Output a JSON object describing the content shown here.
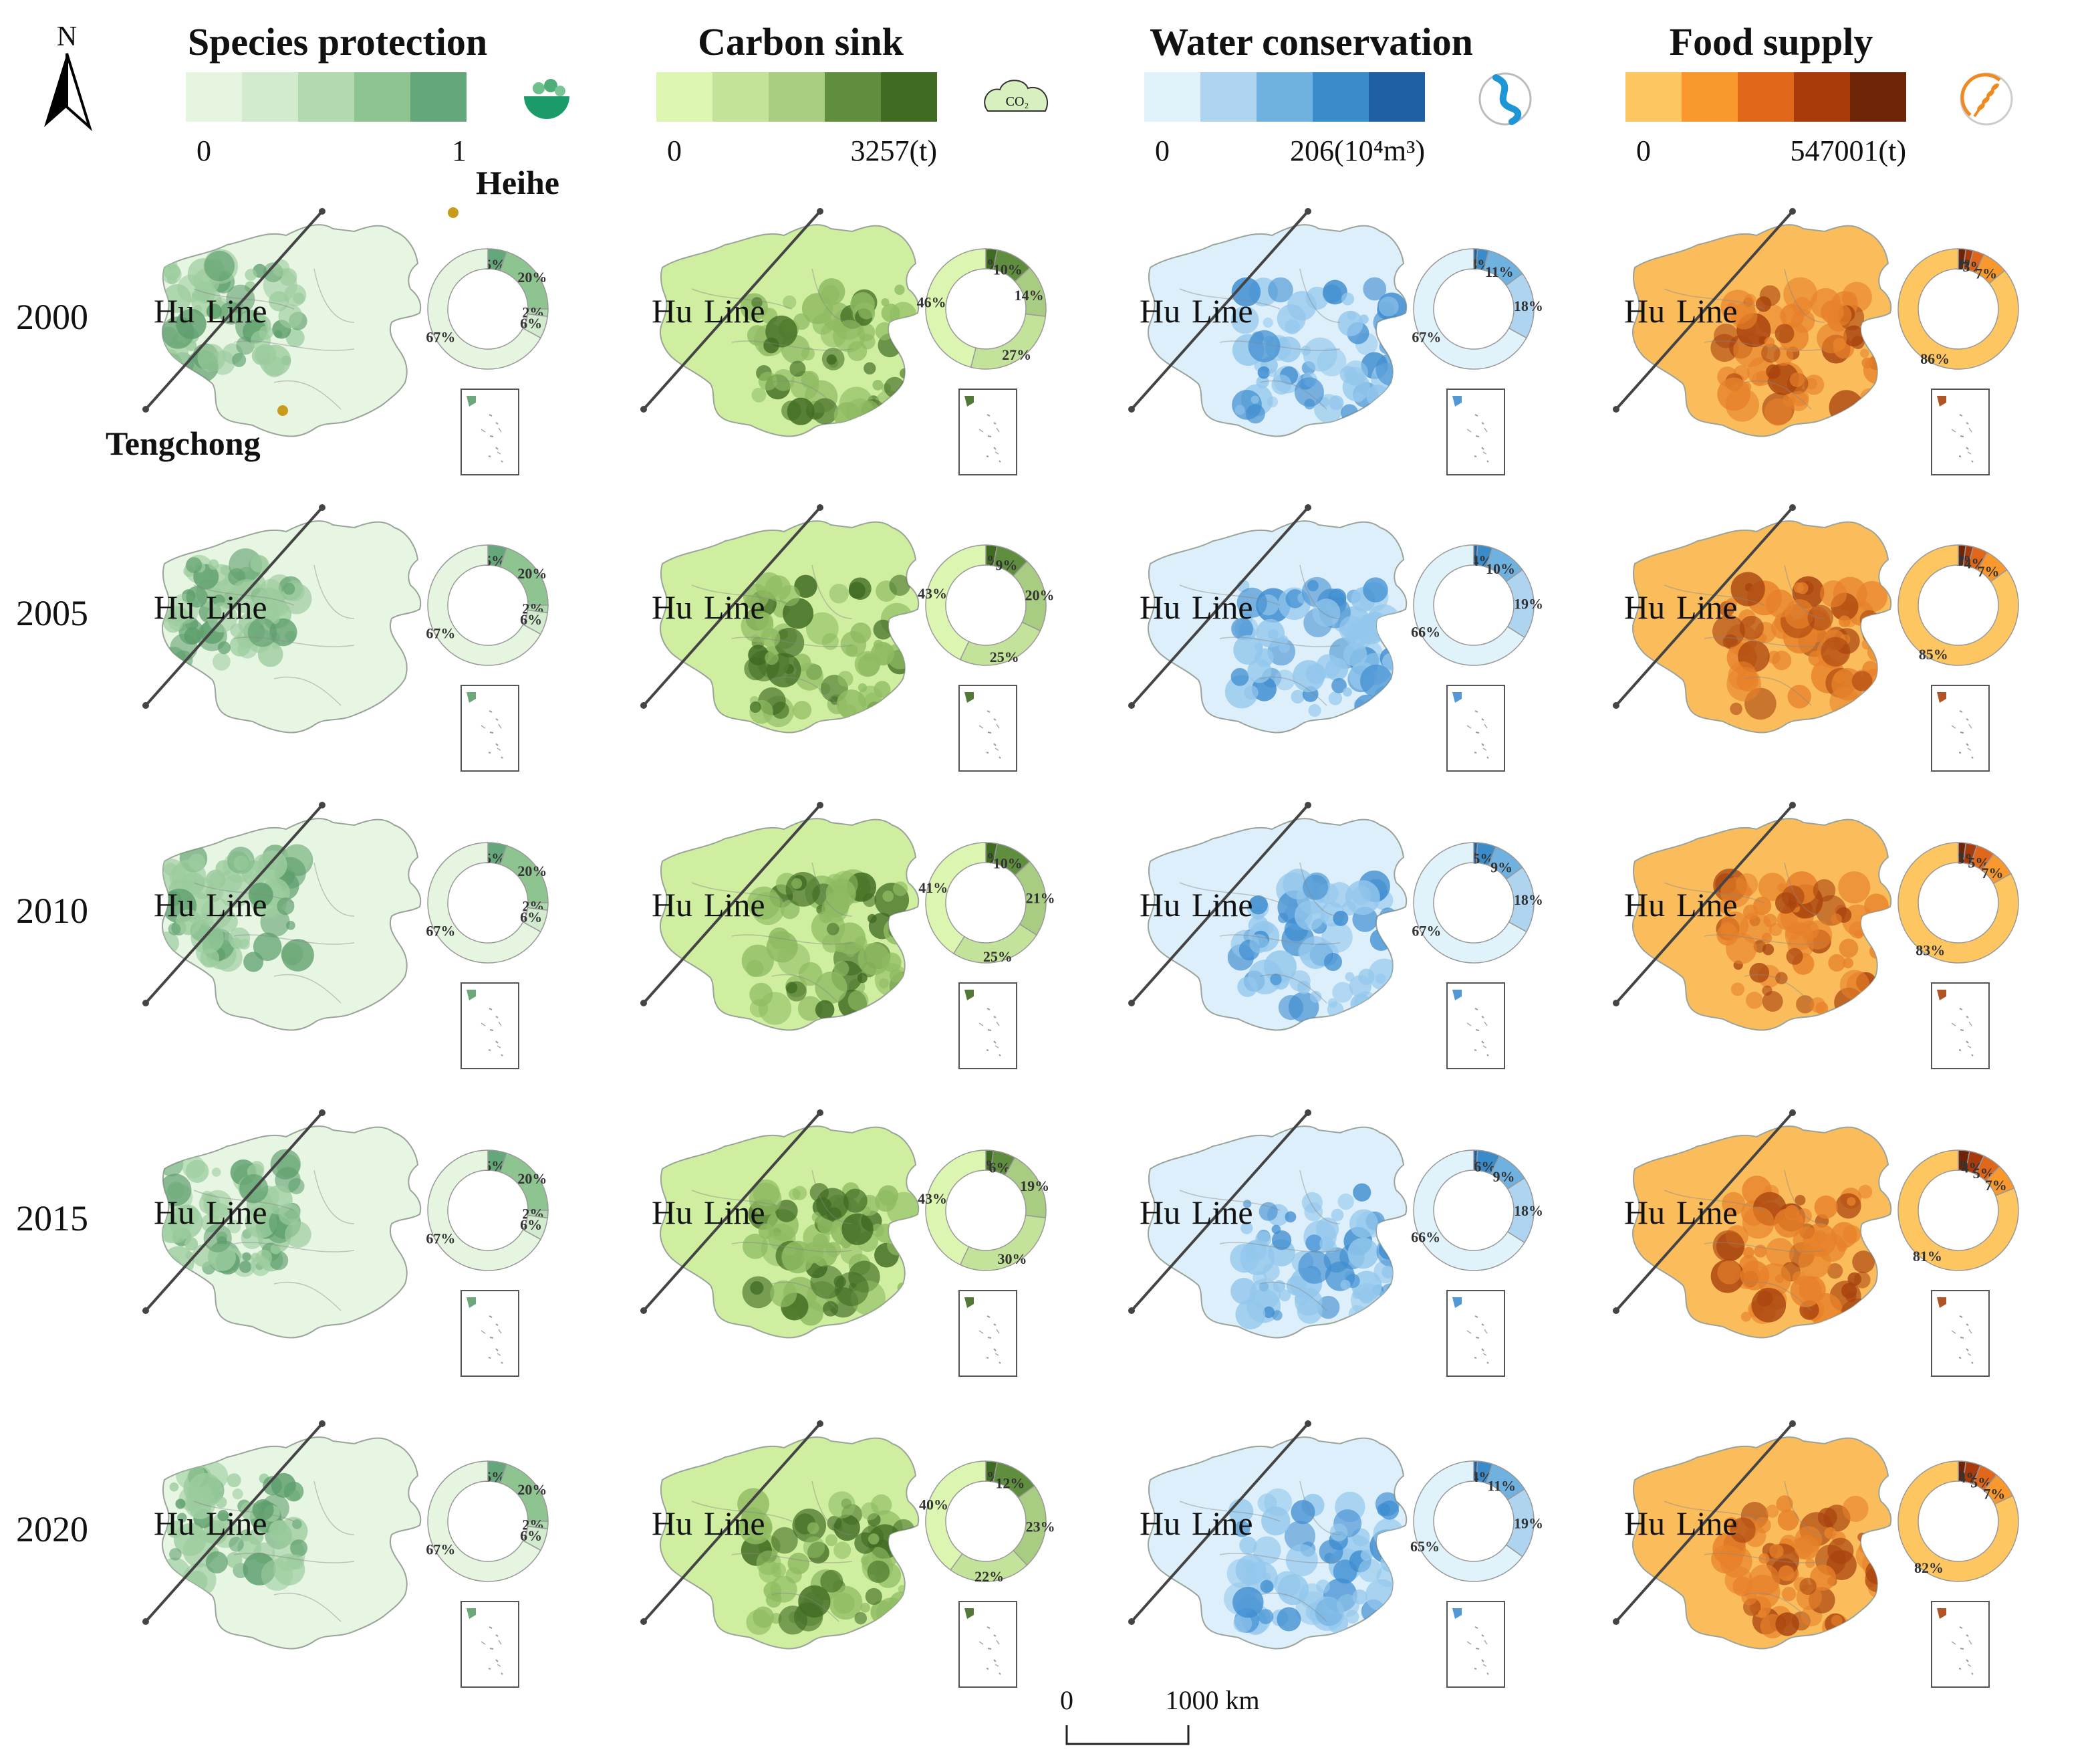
{
  "north_arrow": {
    "label": "N"
  },
  "legends": [
    {
      "title": "Species protection",
      "min_label": "0",
      "max_label": "1",
      "colors": [
        "#e5f5e0",
        "#d2ebcf",
        "#b1d9b0",
        "#8ec48f",
        "#64a77a"
      ],
      "icon": "plant-bowl-icon",
      "icon_text": ""
    },
    {
      "title": "Carbon sink",
      "min_label": "0",
      "max_label": "3257(t)",
      "colors": [
        "#dcf5b1",
        "#c4e39a",
        "#a8cc82",
        "#5f8f3e",
        "#3f6a22"
      ],
      "icon": "co2-cloud-icon",
      "icon_text": "CO₂"
    },
    {
      "title": "Water conservation",
      "min_label": "0",
      "max_label": "206(10⁴m³)",
      "colors": [
        "#e0f2fa",
        "#aed4f0",
        "#6fb2e0",
        "#3a8bca",
        "#1f5fa3"
      ],
      "icon": "river-icon",
      "icon_text": ""
    },
    {
      "title": "Food supply",
      "min_label": "0",
      "max_label": "547001(t)",
      "colors": [
        "#fdc661",
        "#f9982c",
        "#e0661a",
        "#a83a0c",
        "#6e2407"
      ],
      "icon": "wheat-icon",
      "icon_text": ""
    }
  ],
  "place_labels": {
    "north": "Heihe",
    "south": "Tengchong"
  },
  "line_label": {
    "left": "Hu",
    "right": "Line"
  },
  "years": [
    "2000",
    "2005",
    "2010",
    "2015",
    "2020"
  ],
  "donuts": [
    [
      {
        "values": [
          67,
          6,
          2,
          20,
          5
        ],
        "labels": [
          "67%",
          "6%",
          "2%",
          "20%",
          "5%"
        ]
      },
      {
        "values": [
          46,
          27,
          14,
          10,
          3
        ],
        "labels": [
          "46%",
          "27%",
          "14%",
          "10%",
          "3%"
        ]
      },
      {
        "values": [
          67,
          18,
          11,
          3,
          1
        ],
        "labels": [
          "67%",
          "18%",
          "11%",
          "3%",
          "1%"
        ]
      },
      {
        "values": [
          86,
          7,
          3,
          2,
          2
        ],
        "labels": [
          "86%",
          "7%",
          "3%",
          "2%",
          "2%"
        ]
      }
    ],
    [
      {
        "values": [
          67,
          6,
          2,
          20,
          5
        ],
        "labels": [
          "67%",
          "6%",
          "2%",
          "20%",
          "5%"
        ]
      },
      {
        "values": [
          43,
          25,
          20,
          9,
          3
        ],
        "labels": [
          "43%",
          "25%",
          "20%",
          "9%",
          "3%"
        ]
      },
      {
        "values": [
          66,
          19,
          10,
          4,
          1
        ],
        "labels": [
          "66%",
          "19%",
          "10%",
          "4%",
          "1%"
        ]
      },
      {
        "values": [
          85,
          7,
          4,
          2,
          2
        ],
        "labels": [
          "85%",
          "7%",
          "4%",
          "2%",
          "2%"
        ]
      }
    ],
    [
      {
        "values": [
          67,
          6,
          2,
          20,
          5
        ],
        "labels": [
          "67%",
          "6%",
          "2%",
          "20%",
          "5%"
        ]
      },
      {
        "values": [
          41,
          25,
          21,
          10,
          3
        ],
        "labels": [
          "41%",
          "25%",
          "21%",
          "10%",
          "3%"
        ]
      },
      {
        "values": [
          67,
          18,
          9,
          5,
          1
        ],
        "labels": [
          "67%",
          "18%",
          "9%",
          "5%",
          "1%"
        ]
      },
      {
        "values": [
          83,
          7,
          5,
          3,
          2
        ],
        "labels": [
          "83%",
          "7%",
          "5%",
          "3%",
          "2%"
        ]
      }
    ],
    [
      {
        "values": [
          67,
          6,
          2,
          20,
          5
        ],
        "labels": [
          "67%",
          "6%",
          "2%",
          "20%",
          "5%"
        ]
      },
      {
        "values": [
          43,
          30,
          19,
          6,
          2
        ],
        "labels": [
          "43%",
          "30%",
          "19%",
          "6%",
          "2%"
        ]
      },
      {
        "values": [
          66,
          18,
          9,
          6,
          1
        ],
        "labels": [
          "66%",
          "18%",
          "9%",
          "6%",
          "1%"
        ]
      },
      {
        "values": [
          81,
          7,
          5,
          4,
          3
        ],
        "labels": [
          "81%",
          "7%",
          "5%",
          "4%",
          "3%"
        ]
      }
    ],
    [
      {
        "values": [
          67,
          6,
          2,
          20,
          5
        ],
        "labels": [
          "67%",
          "6%",
          "2%",
          "20%",
          "5%"
        ]
      },
      {
        "values": [
          40,
          22,
          23,
          12,
          3
        ],
        "labels": [
          "40%",
          "22%",
          "23%",
          "12%",
          "3%"
        ]
      },
      {
        "values": [
          65,
          19,
          11,
          4,
          1
        ],
        "labels": [
          "65%",
          "19%",
          "11%",
          "4%",
          "1%"
        ]
      },
      {
        "values": [
          82,
          7,
          5,
          4,
          2
        ],
        "labels": [
          "82%",
          "7%",
          "5%",
          "4%",
          "2%"
        ]
      }
    ]
  ],
  "scale_bar": {
    "start_label": "0",
    "end_label": "1000 km"
  }
}
